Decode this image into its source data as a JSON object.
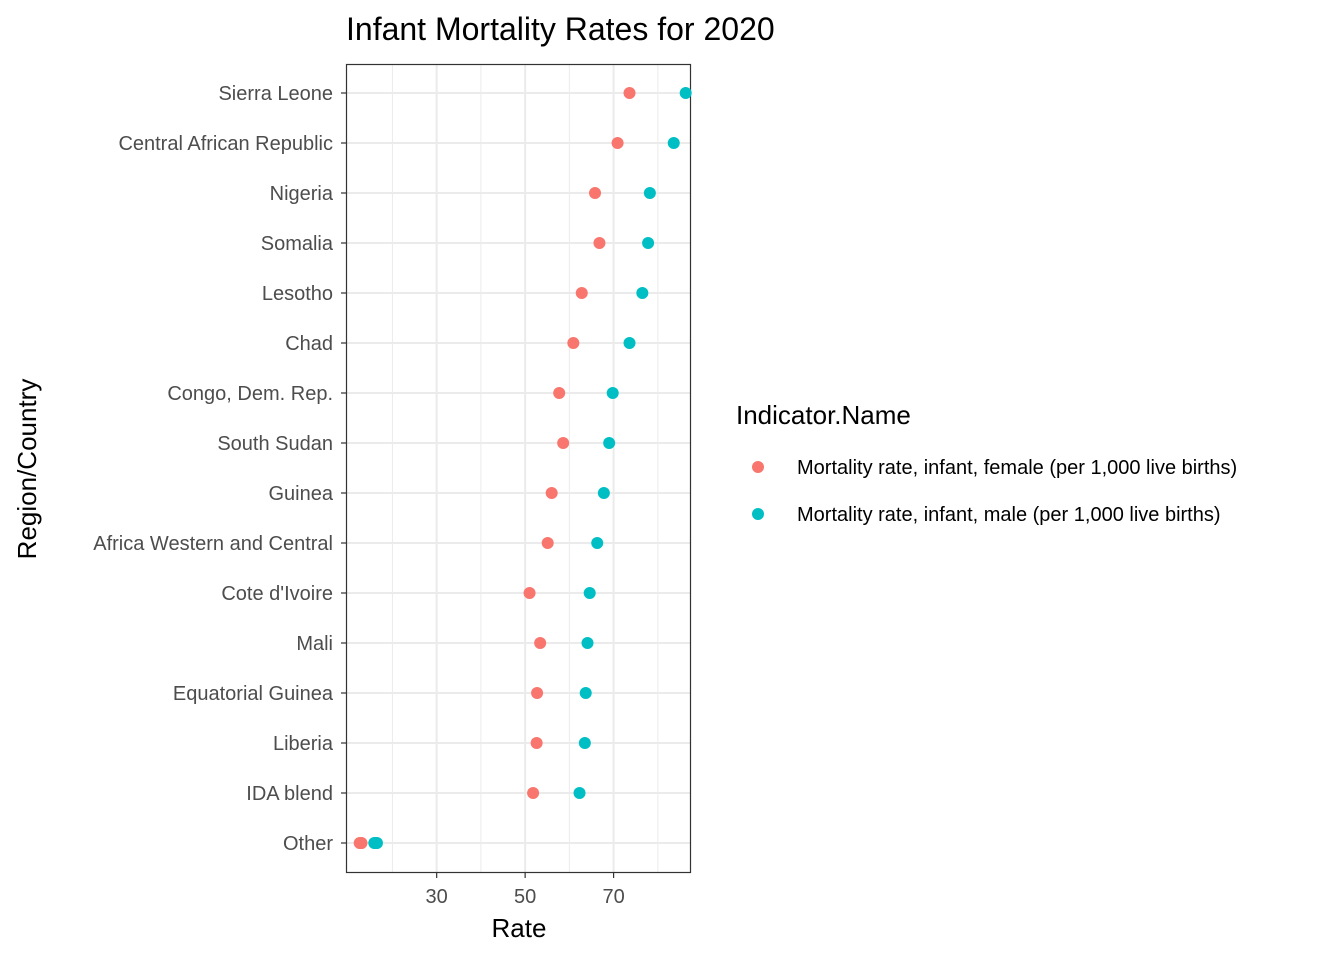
{
  "chart_data": {
    "type": "scatter",
    "title": "Infant Mortality Rates for 2020",
    "xlabel": "Rate",
    "ylabel": "Region/Country",
    "xlim": [
      9.5,
      87.5
    ],
    "x_ticks": [
      30,
      50,
      70
    ],
    "x_minor_ticks": [
      20,
      40,
      60,
      80
    ],
    "grid": true,
    "legend_position": "right",
    "legend_title": "Indicator.Name",
    "categories": [
      "Sierra Leone",
      "Central African Republic",
      "Nigeria",
      "Somalia",
      "Lesotho",
      "Chad",
      "Congo, Dem. Rep.",
      "South Sudan",
      "Guinea",
      "Africa Western and Central",
      "Cote d'Ivoire",
      "Mali",
      "Equatorial Guinea",
      "Liberia",
      "IDA blend",
      "Other"
    ],
    "series": [
      {
        "name": "Mortality rate, infant, female (per 1,000 live births)",
        "color": "#F8766D",
        "values": [
          73.6,
          70.9,
          65.8,
          66.8,
          62.8,
          60.9,
          57.7,
          58.6,
          56.0,
          55.1,
          51.0,
          53.4,
          52.7,
          52.6,
          51.8,
          12.9
        ]
      },
      {
        "name": "Mortality rate, infant, male (per 1,000 live births)",
        "color": "#00BFC4",
        "values": [
          86.3,
          83.6,
          78.2,
          77.8,
          76.5,
          73.6,
          69.8,
          69.0,
          67.8,
          66.3,
          64.6,
          64.1,
          63.7,
          63.5,
          62.3,
          16.3
        ]
      }
    ],
    "other_points": {
      "female": [
        12.6,
        12.8,
        13.0
      ],
      "male": [
        15.9,
        16.2,
        16.5
      ]
    }
  }
}
